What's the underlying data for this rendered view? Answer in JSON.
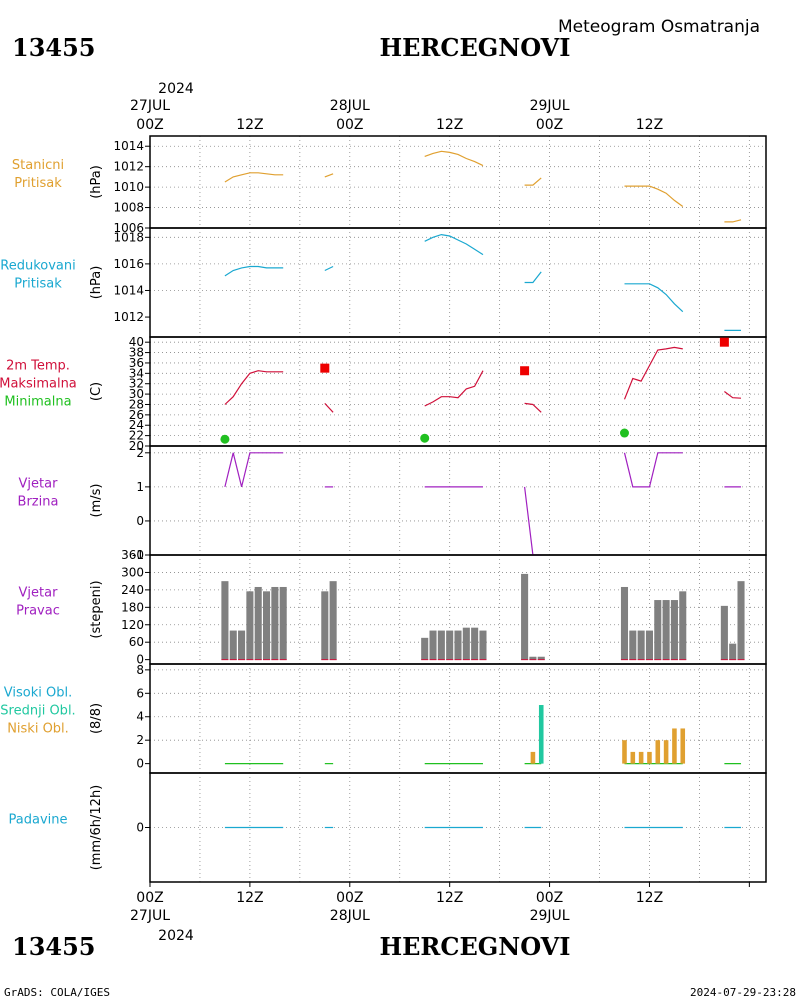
{
  "header": {
    "station_id": "13455",
    "station_name": "HERCEGNOVI",
    "subtitle": "Meteogram Osmatranja"
  },
  "time_axis": {
    "year": "2024",
    "days": [
      {
        "hour": "00Z",
        "label": "27JUL"
      },
      {
        "hour": "00Z",
        "label": "28JUL"
      },
      {
        "hour": "00Z",
        "label": "29JUL"
      }
    ],
    "mid_label": "12Z"
  },
  "footer": {
    "left": "GrADS: COLA/IGES",
    "right": "2024-07-29-23:28"
  },
  "colors": {
    "orange": "#e0a030",
    "cyan": "#1aa8d0",
    "crimson": "#d0103a",
    "green": "#20c020",
    "purple": "#a020c0",
    "gray": "#808080",
    "teal": "#20c8a0",
    "red": "#ee0000"
  },
  "chart_data": [
    {
      "id": "p1",
      "type": "line",
      "labels": [
        "Stanicni",
        "Pritisak"
      ],
      "label_colors": [
        "orange",
        "orange"
      ],
      "unit": "(hPa)",
      "ylim": [
        1006,
        1015
      ],
      "yticks": [
        1006,
        1008,
        1010,
        1012,
        1014
      ],
      "series": [
        {
          "color": "orange",
          "points": [
            [
              9,
              1010.5
            ],
            [
              10,
              1011
            ],
            [
              11,
              1011.2
            ],
            [
              12,
              1011.4
            ],
            [
              13,
              1011.4
            ],
            [
              14,
              1011.3
            ],
            [
              15,
              1011.2
            ],
            [
              16,
              1011.2
            ]
          ]
        },
        {
          "color": "orange",
          "points": [
            [
              21,
              1011
            ],
            [
              22,
              1011.3
            ]
          ]
        },
        {
          "color": "orange",
          "points": [
            [
              33,
              1013
            ],
            [
              34,
              1013.3
            ],
            [
              35,
              1013.5
            ],
            [
              36,
              1013.4
            ],
            [
              37,
              1013.2
            ],
            [
              38,
              1012.8
            ],
            [
              39,
              1012.5
            ],
            [
              40,
              1012.1
            ]
          ]
        },
        {
          "color": "orange",
          "points": [
            [
              45,
              1010.2
            ],
            [
              46,
              1010.2
            ],
            [
              47,
              1010.9
            ]
          ]
        },
        {
          "color": "orange",
          "points": [
            [
              57,
              1010.1
            ],
            [
              58,
              1010.1
            ],
            [
              59,
              1010.1
            ],
            [
              60,
              1010.1
            ],
            [
              61,
              1009.8
            ],
            [
              62,
              1009.4
            ],
            [
              63,
              1008.7
            ],
            [
              64,
              1008.1
            ]
          ]
        },
        {
          "color": "orange",
          "points": [
            [
              69,
              1006.6
            ],
            [
              70,
              1006.6
            ],
            [
              71,
              1006.8
            ]
          ]
        }
      ]
    },
    {
      "id": "p2",
      "type": "line",
      "labels": [
        "Redukovani",
        "Pritisak"
      ],
      "label_colors": [
        "cyan",
        "cyan"
      ],
      "unit": "(hPa)",
      "ylim": [
        1010.5,
        1018.7
      ],
      "yticks": [
        1012,
        1014,
        1016,
        1018
      ],
      "series": [
        {
          "color": "cyan",
          "points": [
            [
              9,
              1015.1
            ],
            [
              10,
              1015.5
            ],
            [
              11,
              1015.7
            ],
            [
              12,
              1015.8
            ],
            [
              13,
              1015.8
            ],
            [
              14,
              1015.7
            ],
            [
              15,
              1015.7
            ],
            [
              16,
              1015.7
            ]
          ]
        },
        {
          "color": "cyan",
          "points": [
            [
              21,
              1015.5
            ],
            [
              22,
              1015.8
            ]
          ]
        },
        {
          "color": "cyan",
          "points": [
            [
              33,
              1017.7
            ],
            [
              34,
              1018
            ],
            [
              35,
              1018.2
            ],
            [
              36,
              1018.1
            ],
            [
              37,
              1017.8
            ],
            [
              38,
              1017.5
            ],
            [
              39,
              1017.1
            ],
            [
              40,
              1016.7
            ]
          ]
        },
        {
          "color": "cyan",
          "points": [
            [
              45,
              1014.6
            ],
            [
              46,
              1014.6
            ],
            [
              47,
              1015.4
            ]
          ]
        },
        {
          "color": "cyan",
          "points": [
            [
              57,
              1014.5
            ],
            [
              58,
              1014.5
            ],
            [
              59,
              1014.5
            ],
            [
              60,
              1014.5
            ],
            [
              61,
              1014.2
            ],
            [
              62,
              1013.7
            ],
            [
              63,
              1013
            ],
            [
              64,
              1012.4
            ]
          ]
        },
        {
          "color": "cyan",
          "points": [
            [
              69,
              1011
            ],
            [
              70,
              1011
            ],
            [
              71,
              1011
            ]
          ]
        }
      ]
    },
    {
      "id": "p3",
      "type": "line",
      "labels": [
        "2m Temp.",
        "Maksimalna",
        "Minimalna"
      ],
      "label_colors": [
        "crimson",
        "crimson",
        "green"
      ],
      "unit": "(C)",
      "ylim": [
        20,
        41
      ],
      "yticks": [
        20,
        22,
        24,
        26,
        28,
        30,
        32,
        34,
        36,
        38,
        40
      ],
      "series": [
        {
          "color": "crimson",
          "points": [
            [
              9,
              28
            ],
            [
              10,
              29.5
            ],
            [
              11,
              32
            ],
            [
              12,
              34
            ],
            [
              13,
              34.5
            ],
            [
              14,
              34.3
            ],
            [
              15,
              34.3
            ],
            [
              16,
              34.3
            ]
          ]
        },
        {
          "color": "crimson",
          "points": [
            [
              21,
              28.2
            ],
            [
              22,
              26.5
            ]
          ]
        },
        {
          "color": "crimson",
          "points": [
            [
              33,
              27.7
            ],
            [
              34,
              28.5
            ],
            [
              35,
              29.5
            ],
            [
              36,
              29.5
            ],
            [
              37,
              29.3
            ],
            [
              38,
              31
            ],
            [
              39,
              31.5
            ],
            [
              40,
              34.5
            ]
          ]
        },
        {
          "color": "crimson",
          "points": [
            [
              45,
              28.2
            ],
            [
              46,
              28
            ],
            [
              47,
              26.5
            ]
          ]
        },
        {
          "color": "crimson",
          "points": [
            [
              57,
              29
            ],
            [
              58,
              33
            ],
            [
              59,
              32.5
            ],
            [
              60,
              35.5
            ],
            [
              61,
              38.5
            ],
            [
              62,
              38.7
            ],
            [
              63,
              39
            ],
            [
              64,
              38.7
            ]
          ]
        },
        {
          "color": "crimson",
          "points": [
            [
              69,
              30.5
            ],
            [
              70,
              29.3
            ],
            [
              71,
              29.2
            ]
          ]
        }
      ],
      "max_points": {
        "color": "red",
        "points": [
          [
            21,
            35
          ],
          [
            45,
            34.5
          ],
          [
            69,
            40
          ]
        ]
      },
      "min_points": {
        "color": "green",
        "points": [
          [
            9,
            21.3
          ],
          [
            33,
            21.5
          ],
          [
            57,
            22.5
          ]
        ]
      }
    },
    {
      "id": "p4",
      "type": "line",
      "labels": [
        "Vjetar",
        "Brzina"
      ],
      "label_colors": [
        "purple",
        "purple"
      ],
      "unit": "(m/s)",
      "ylim": [
        -1,
        2.2
      ],
      "yticks": [
        -1,
        0,
        1,
        2
      ],
      "series": [
        {
          "color": "purple",
          "points": [
            [
              9,
              1
            ],
            [
              10,
              2
            ],
            [
              11,
              1
            ],
            [
              12,
              2
            ],
            [
              13,
              2
            ],
            [
              14,
              2
            ],
            [
              15,
              2
            ],
            [
              16,
              2
            ]
          ]
        },
        {
          "color": "purple",
          "points": [
            [
              21,
              1
            ],
            [
              22,
              1
            ]
          ]
        },
        {
          "color": "purple",
          "points": [
            [
              33,
              1
            ],
            [
              34,
              1
            ],
            [
              35,
              1
            ],
            [
              36,
              1
            ],
            [
              37,
              1
            ],
            [
              38,
              1
            ],
            [
              39,
              1
            ],
            [
              40,
              1
            ]
          ]
        },
        {
          "color": "purple",
          "points": [
            [
              45,
              1
            ],
            [
              46,
              -1
            ],
            [
              47,
              -1
            ]
          ]
        },
        {
          "color": "purple",
          "points": [
            [
              57,
              2
            ],
            [
              58,
              1
            ],
            [
              59,
              1
            ],
            [
              60,
              1
            ],
            [
              61,
              2
            ],
            [
              62,
              2
            ],
            [
              63,
              2
            ],
            [
              64,
              2
            ]
          ]
        },
        {
          "color": "purple",
          "points": [
            [
              69,
              1
            ],
            [
              70,
              1
            ],
            [
              71,
              1
            ]
          ]
        }
      ]
    },
    {
      "id": "p5",
      "type": "bar",
      "labels": [
        "Vjetar",
        "Pravac"
      ],
      "label_colors": [
        "purple",
        "purple"
      ],
      "unit": "(stepeni)",
      "ylim": [
        -15,
        360
      ],
      "yticks": [
        0,
        60,
        120,
        180,
        240,
        300,
        360
      ],
      "bar_color": "gray",
      "bar_width": 0.85,
      "x": [
        9,
        10,
        11,
        12,
        13,
        14,
        15,
        16,
        21,
        22,
        33,
        34,
        35,
        36,
        37,
        38,
        39,
        40,
        45,
        46,
        47,
        57,
        58,
        59,
        60,
        61,
        62,
        63,
        64,
        69,
        70,
        71
      ],
      "values": [
        270,
        100,
        100,
        235,
        250,
        235,
        250,
        250,
        235,
        270,
        75,
        100,
        100,
        100,
        100,
        110,
        110,
        100,
        295,
        10,
        10,
        250,
        100,
        100,
        100,
        205,
        205,
        205,
        235,
        185,
        55,
        270
      ]
    },
    {
      "id": "p6",
      "type": "bar",
      "labels": [
        "Visoki Obl.",
        "Srednji Obl.",
        "Niski Obl."
      ],
      "label_colors": [
        "cyan",
        "teal",
        "orange"
      ],
      "unit": "(8/8)",
      "ylim": [
        -0.8,
        8.5
      ],
      "yticks": [
        0,
        2,
        4,
        6,
        8
      ],
      "bar_width": 0.55,
      "bars": [
        {
          "x": 46,
          "value": 1,
          "color": "orange"
        },
        {
          "x": 47,
          "value": 5,
          "color": "teal"
        },
        {
          "x": 57,
          "value": 2,
          "color": "orange"
        },
        {
          "x": 58,
          "value": 1,
          "color": "orange"
        },
        {
          "x": 59,
          "value": 1,
          "color": "orange"
        },
        {
          "x": 60,
          "value": 1,
          "color": "orange"
        },
        {
          "x": 61,
          "value": 2,
          "color": "orange"
        },
        {
          "x": 62,
          "value": 2,
          "color": "orange"
        },
        {
          "x": 63,
          "value": 3,
          "color": "orange"
        },
        {
          "x": 64,
          "value": 3,
          "color": "orange"
        }
      ],
      "zero_segments": [
        [
          9,
          16
        ],
        [
          21,
          22
        ],
        [
          33,
          40
        ],
        [
          45,
          47
        ],
        [
          57,
          64
        ],
        [
          69,
          71
        ]
      ]
    },
    {
      "id": "p7",
      "type": "line",
      "labels": [
        "Padavine"
      ],
      "label_colors": [
        "cyan"
      ],
      "unit": "(mm/6h/12h)",
      "ylim": [
        -5,
        5
      ],
      "yticks": [
        0
      ],
      "zero_segments": [
        [
          9,
          16
        ],
        [
          21,
          22
        ],
        [
          33,
          40
        ],
        [
          45,
          47
        ],
        [
          57,
          64
        ],
        [
          69,
          71
        ]
      ]
    }
  ]
}
